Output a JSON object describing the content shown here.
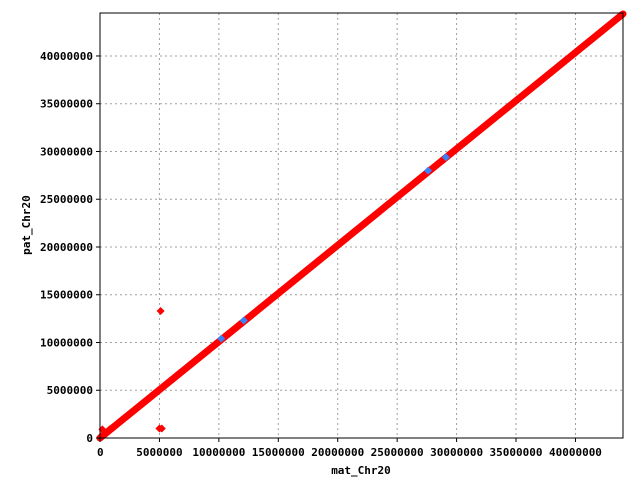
{
  "chart_data": {
    "type": "scatter",
    "title": "",
    "xlabel": "mat_Chr20",
    "ylabel": "pat_Chr20",
    "xlim": [
      0,
      44000000
    ],
    "ylim": [
      0,
      44500000
    ],
    "grid": true,
    "x_ticks": [
      0,
      5000000,
      10000000,
      15000000,
      20000000,
      25000000,
      30000000,
      35000000,
      40000000
    ],
    "x_tick_labels": [
      "0",
      "5000000",
      "10000000",
      "15000000",
      "20000000",
      "25000000",
      "30000000",
      "35000000",
      "40000000"
    ],
    "y_ticks": [
      0,
      5000000,
      10000000,
      15000000,
      20000000,
      25000000,
      30000000,
      35000000,
      40000000
    ],
    "y_tick_labels": [
      "0",
      "5000000",
      "10000000",
      "15000000",
      "20000000",
      "25000000",
      "30000000",
      "35000000",
      "40000000"
    ],
    "series": [
      {
        "color": "#ff0000",
        "segments": [
          {
            "x0": 0,
            "y0": 0,
            "x1": 44000000,
            "y1": 44400000
          }
        ],
        "points": [
          {
            "x": 100000,
            "y": 200000
          },
          {
            "x": 200000,
            "y": 900000
          },
          {
            "x": 400000,
            "y": 500000
          },
          {
            "x": 800000,
            "y": 900000
          },
          {
            "x": 5100000,
            "y": 13300000
          },
          {
            "x": 5000000,
            "y": 1000000
          },
          {
            "x": 5200000,
            "y": 1000000
          }
        ]
      },
      {
        "color": "#3b82f6",
        "points": [
          {
            "x": 10200000,
            "y": 10400000
          },
          {
            "x": 12100000,
            "y": 12300000
          },
          {
            "x": 27600000,
            "y": 28000000
          },
          {
            "x": 29100000,
            "y": 29400000
          }
        ]
      }
    ]
  }
}
